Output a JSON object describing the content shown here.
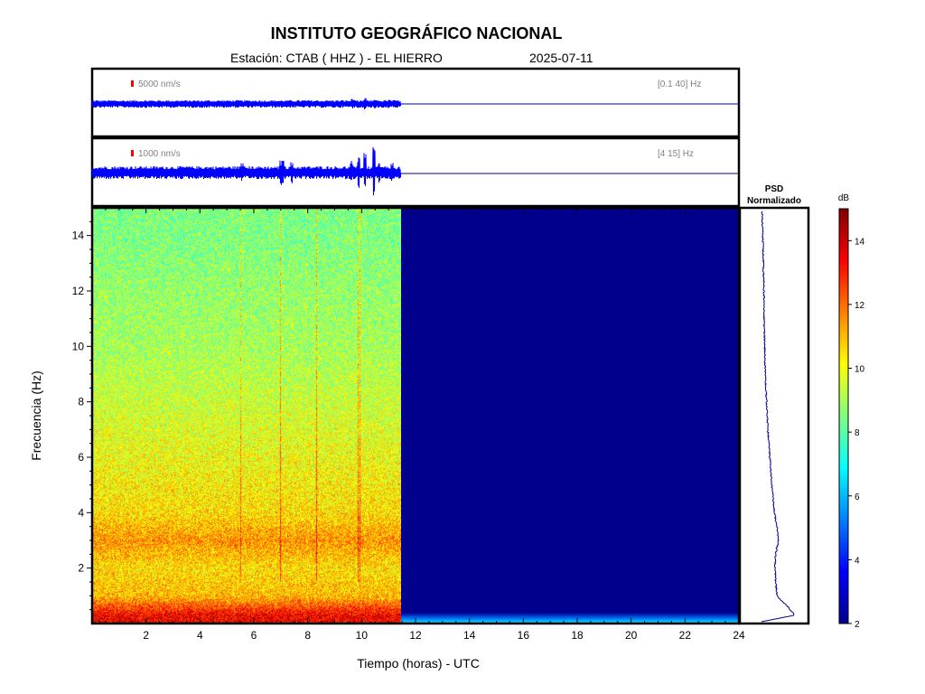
{
  "header": {
    "title": "INSTITUTO GEOGRÁFICO NACIONAL",
    "station": "Estación:  CTAB ( HHZ ) - EL HIERRO",
    "date": "2025-07-11"
  },
  "traces": [
    {
      "scale_label": "5000 nm/s",
      "band_label": "[0.1 40]  Hz"
    },
    {
      "scale_label": "1000 nm/s",
      "band_label": "[4 15]  Hz"
    }
  ],
  "psd": {
    "title_line1": "PSD",
    "title_line2": "Normalizado"
  },
  "colorbar": {
    "unit": "dB",
    "ticks": [
      "2",
      "4",
      "6",
      "8",
      "10",
      "12",
      "14"
    ],
    "range": [
      2,
      15
    ],
    "colormap": "jet"
  },
  "colors": {
    "trace": "#0000ff",
    "trace_flat": "#00009a",
    "empty_field": "#00008c",
    "scale_bar": "#ff0000",
    "band_text": "#808080"
  },
  "chart_data": {
    "type": "heatmap",
    "xlabel": "Tiempo (horas) - UTC",
    "ylabel": "Frecuencia  (Hz)",
    "xlim": [
      0,
      24
    ],
    "ylim": [
      0,
      15
    ],
    "x_ticks": [
      "2",
      "4",
      "6",
      "8",
      "10",
      "12",
      "14",
      "16",
      "18",
      "20",
      "22",
      "24"
    ],
    "y_ticks": [
      "2",
      "4",
      "6",
      "8",
      "10",
      "12",
      "14"
    ],
    "data_end_hour": 11.45,
    "color_scale_db": [
      2,
      15
    ],
    "mean_db_by_frequency": [
      {
        "freq_hz": 0.3,
        "db": 13.5
      },
      {
        "freq_hz": 1.0,
        "db": 11
      },
      {
        "freq_hz": 2.0,
        "db": 10.5
      },
      {
        "freq_hz": 3.0,
        "db": 11.5
      },
      {
        "freq_hz": 4.0,
        "db": 10.5
      },
      {
        "freq_hz": 6.0,
        "db": 10
      },
      {
        "freq_hz": 8.0,
        "db": 9.5
      },
      {
        "freq_hz": 10.0,
        "db": 9
      },
      {
        "freq_hz": 12.0,
        "db": 8.8
      },
      {
        "freq_hz": 14.0,
        "db": 8.5
      }
    ],
    "psd_normalized": [
      {
        "freq_hz": 0.05,
        "value": 0.0
      },
      {
        "freq_hz": 0.3,
        "value": 0.55
      },
      {
        "freq_hz": 0.6,
        "value": 0.45
      },
      {
        "freq_hz": 1.0,
        "value": 0.28
      },
      {
        "freq_hz": 1.5,
        "value": 0.26
      },
      {
        "freq_hz": 2.0,
        "value": 0.25
      },
      {
        "freq_hz": 2.5,
        "value": 0.26
      },
      {
        "freq_hz": 3.0,
        "value": 0.3
      },
      {
        "freq_hz": 3.5,
        "value": 0.28
      },
      {
        "freq_hz": 4.0,
        "value": 0.24
      },
      {
        "freq_hz": 5.0,
        "value": 0.2
      },
      {
        "freq_hz": 6.0,
        "value": 0.17
      },
      {
        "freq_hz": 7.0,
        "value": 0.14
      },
      {
        "freq_hz": 8.0,
        "value": 0.12
      },
      {
        "freq_hz": 9.0,
        "value": 0.1
      },
      {
        "freq_hz": 10.0,
        "value": 0.09
      },
      {
        "freq_hz": 11.0,
        "value": 0.08
      },
      {
        "freq_hz": 12.0,
        "value": 0.08
      },
      {
        "freq_hz": 13.0,
        "value": 0.07
      },
      {
        "freq_hz": 14.0,
        "value": 0.06
      },
      {
        "freq_hz": 15.0,
        "value": 0.05
      }
    ]
  }
}
